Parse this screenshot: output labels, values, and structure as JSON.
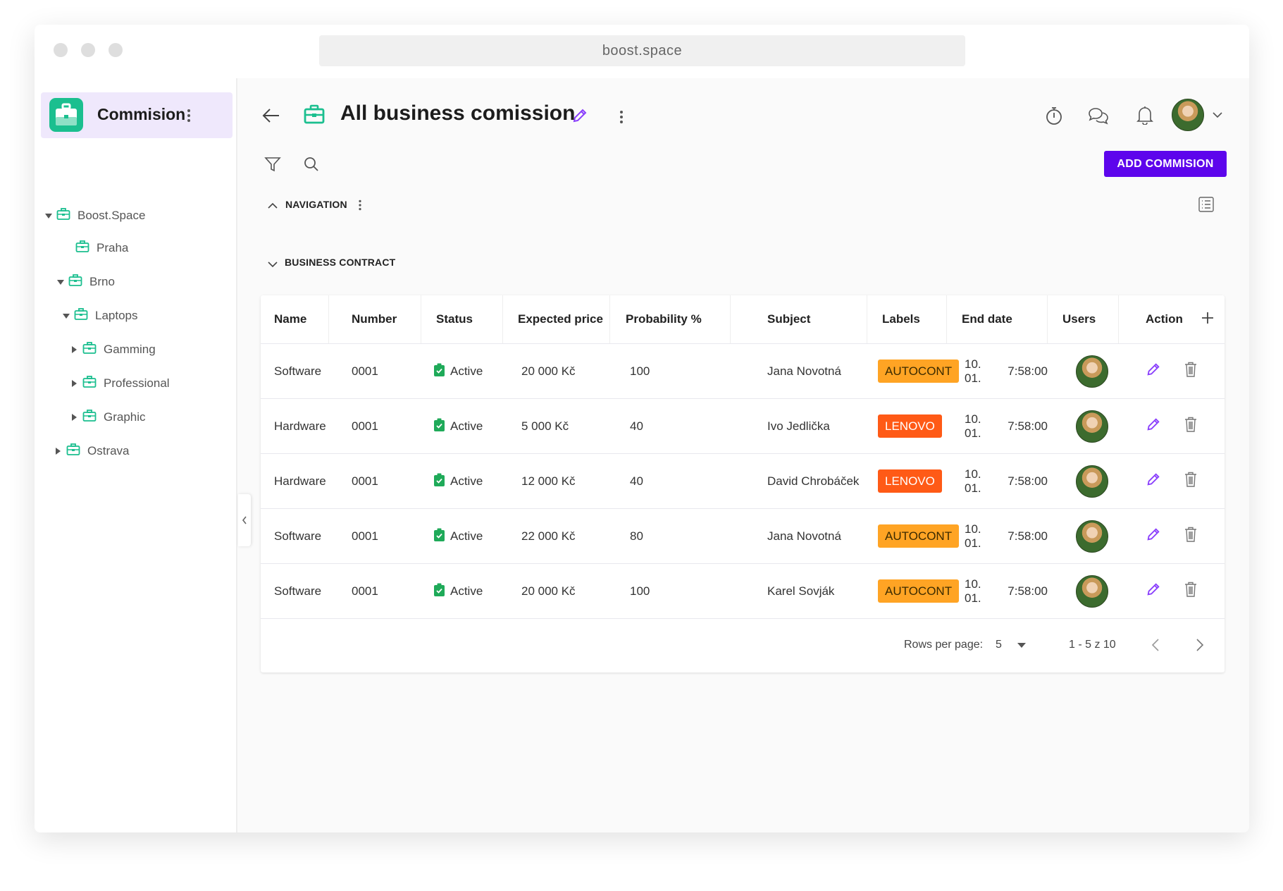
{
  "browser": {
    "url": "boost.space"
  },
  "sidebar": {
    "title": "Commision",
    "tree": [
      {
        "label": "Boost.Space",
        "expanded": true,
        "level": 0
      },
      {
        "label": "Praha",
        "level": 1
      },
      {
        "label": "Brno",
        "expanded": true,
        "level": 1
      },
      {
        "label": "Laptops",
        "expanded": true,
        "level": 2
      },
      {
        "label": "Gamming",
        "expanded": false,
        "level": 3
      },
      {
        "label": "Professional",
        "expanded": false,
        "level": 3
      },
      {
        "label": "Graphic",
        "expanded": false,
        "level": 3
      },
      {
        "label": "Ostrava",
        "expanded": false,
        "level": 1
      }
    ]
  },
  "header": {
    "title": "All business comission",
    "add_button": "ADD COMMISION"
  },
  "sections": {
    "navigation": "NAVIGATION",
    "business_contract": "BUSINESS CONTRACT"
  },
  "table": {
    "columns": [
      "Name",
      "Number",
      "Status",
      "Expected price",
      "Probability %",
      "Subject",
      "Labels",
      "End date",
      "Users",
      "Action"
    ],
    "rows": [
      {
        "name": "Software",
        "number": "0001",
        "status": "Active",
        "price": "20 000 Kč",
        "probability": "100",
        "subject": "Jana Novotná",
        "label": "AUTOCONT",
        "end_date": "10. 01.",
        "end_time": "7:58:00"
      },
      {
        "name": "Hardware",
        "number": "0001",
        "status": "Active",
        "price": "5 000 Kč",
        "probability": "40",
        "subject": "Ivo Jedlička",
        "label": "LENOVO",
        "end_date": "10. 01.",
        "end_time": "7:58:00"
      },
      {
        "name": "Hardware",
        "number": "0001",
        "status": "Active",
        "price": "12 000 Kč",
        "probability": "40",
        "subject": "David Chrobáček",
        "label": "LENOVO",
        "end_date": "10. 01.",
        "end_time": "7:58:00"
      },
      {
        "name": "Software",
        "number": "0001",
        "status": "Active",
        "price": "22 000 Kč",
        "probability": "80",
        "subject": "Jana Novotná",
        "label": "AUTOCONT",
        "end_date": "10. 01.",
        "end_time": "7:58:00"
      },
      {
        "name": "Software",
        "number": "0001",
        "status": "Active",
        "price": "20 000 Kč",
        "probability": "100",
        "subject": "Karel Sovják",
        "label": "AUTOCONT",
        "end_date": "10. 01.",
        "end_time": "7:58:00"
      }
    ],
    "pagination": {
      "rows_per_page_label": "Rows per page:",
      "rows_per_page": "5",
      "range": "1 - 5 z 10"
    }
  },
  "colors": {
    "accent": "#5d05ec",
    "brand_green": "#1bbf8f",
    "status_green": "#1faa59",
    "AUTOCONT": "#ffa424",
    "LENOVO": "#ff5a16",
    "pencil": "#8a3ffc"
  }
}
